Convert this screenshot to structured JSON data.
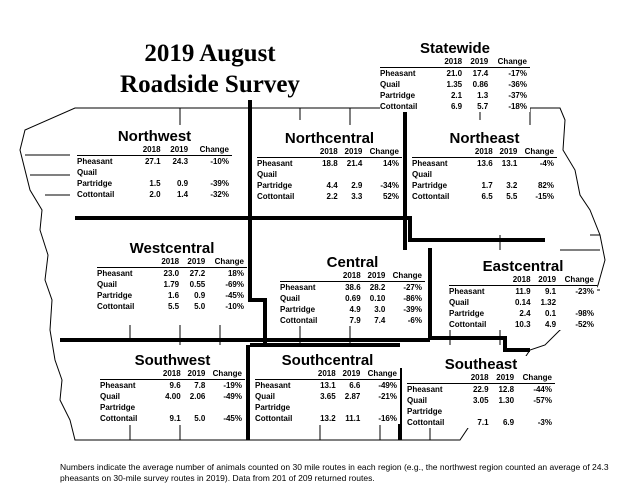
{
  "title": [
    "2019 August",
    "Roadside Survey"
  ],
  "columns": [
    "2018",
    "2019",
    "Change"
  ],
  "regions": {
    "statewide": {
      "name": "Statewide",
      "rows": [
        [
          "Pheasant",
          "21.0",
          "17.4",
          "-17%"
        ],
        [
          "Quail",
          "1.35",
          "0.86",
          "-36%"
        ],
        [
          "Partridge",
          "2.1",
          "1.3",
          "-37%"
        ],
        [
          "Cottontail",
          "6.9",
          "5.7",
          "-18%"
        ]
      ]
    },
    "northwest": {
      "name": "Northwest",
      "rows": [
        [
          "Pheasant",
          "27.1",
          "24.3",
          "-10%"
        ],
        [
          "Quail",
          "",
          "",
          ""
        ],
        [
          "Partridge",
          "1.5",
          "0.9",
          "-39%"
        ],
        [
          "Cottontail",
          "2.0",
          "1.4",
          "-32%"
        ]
      ]
    },
    "northcentral": {
      "name": "Northcentral",
      "rows": [
        [
          "Pheasant",
          "18.8",
          "21.4",
          "14%"
        ],
        [
          "Quail",
          "",
          "",
          ""
        ],
        [
          "Partridge",
          "4.4",
          "2.9",
          "-34%"
        ],
        [
          "Cottontail",
          "2.2",
          "3.3",
          "52%"
        ]
      ]
    },
    "northeast": {
      "name": "Northeast",
      "rows": [
        [
          "Pheasant",
          "13.6",
          "13.1",
          "-4%"
        ],
        [
          "Quail",
          "",
          "",
          ""
        ],
        [
          "Partridge",
          "1.7",
          "3.2",
          "82%"
        ],
        [
          "Cottontail",
          "6.5",
          "5.5",
          "-15%"
        ]
      ]
    },
    "westcentral": {
      "name": "Westcentral",
      "rows": [
        [
          "Pheasant",
          "23.0",
          "27.2",
          "18%"
        ],
        [
          "Quail",
          "1.79",
          "0.55",
          "-69%"
        ],
        [
          "Partridge",
          "1.6",
          "0.9",
          "-45%"
        ],
        [
          "Cottontail",
          "5.5",
          "5.0",
          "-10%"
        ]
      ]
    },
    "central": {
      "name": "Central",
      "rows": [
        [
          "Pheasant",
          "38.6",
          "28.2",
          "-27%"
        ],
        [
          "Quail",
          "0.69",
          "0.10",
          "-86%"
        ],
        [
          "Partridge",
          "4.9",
          "3.0",
          "-39%"
        ],
        [
          "Cottontail",
          "7.9",
          "7.4",
          "-6%"
        ]
      ]
    },
    "eastcentral": {
      "name": "Eastcentral",
      "rows": [
        [
          "Pheasant",
          "11.9",
          "9.1",
          "-23%"
        ],
        [
          "Quail",
          "0.14",
          "1.32",
          ""
        ],
        [
          "Partridge",
          "2.4",
          "0.1",
          "-98%"
        ],
        [
          "Cottontail",
          "10.3",
          "4.9",
          "-52%"
        ]
      ]
    },
    "southwest": {
      "name": "Southwest",
      "rows": [
        [
          "Pheasant",
          "9.6",
          "7.8",
          "-19%"
        ],
        [
          "Quail",
          "4.00",
          "2.06",
          "-49%"
        ],
        [
          "Partridge",
          "",
          "",
          ""
        ],
        [
          "Cottontail",
          "9.1",
          "5.0",
          "-45%"
        ]
      ]
    },
    "southcentral": {
      "name": "Southcentral",
      "rows": [
        [
          "Pheasant",
          "13.1",
          "6.6",
          "-49%"
        ],
        [
          "Quail",
          "3.65",
          "2.87",
          "-21%"
        ],
        [
          "Partridge",
          "",
          "",
          ""
        ],
        [
          "Cottontail",
          "13.2",
          "11.1",
          "-16%"
        ]
      ]
    },
    "southeast": {
      "name": "Southeast",
      "rows": [
        [
          "Pheasant",
          "22.9",
          "12.8",
          "-44%"
        ],
        [
          "Quail",
          "3.05",
          "1.30",
          "-57%"
        ],
        [
          "Partridge",
          "",
          "",
          ""
        ],
        [
          "Cottontail",
          "7.1",
          "6.9",
          "-3%"
        ]
      ]
    }
  },
  "footer": "Numbers indicate the average number of animals counted on 30 mile routes in each region (e.g., the northwest region counted an average of 24.3 pheasants on 30-mile survey routes in 2019).  Data from 201 of 209 returned routes."
}
